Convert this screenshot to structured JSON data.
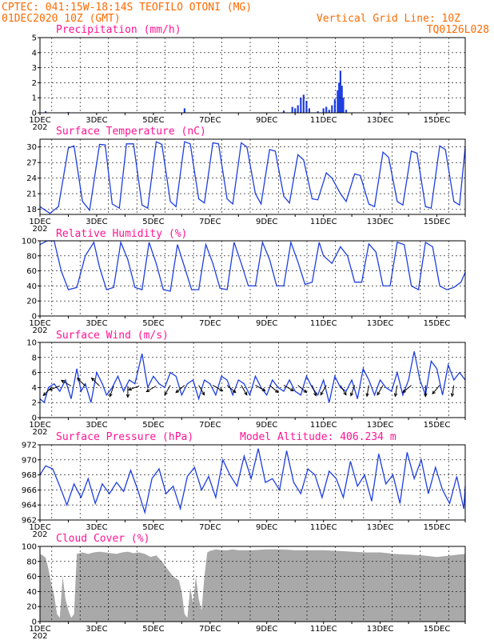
{
  "header": {
    "line1": "CPTEC:   041:15W-18:14S  TEOFILO OTONI (MG)",
    "line2": "01DEC2020 10Z (GMT)",
    "right1": "Vertical Grid Line: 10Z",
    "right2": "TQ0126L028"
  },
  "colors": {
    "header": "#ff6a00",
    "panel_title": "#ff1493",
    "line": "#1f3fe0",
    "bars": "#1f3fe0",
    "cloud": "#a9a9a9",
    "arrows": "#000000"
  },
  "x_axis": {
    "start_day": 1,
    "end_day": 16,
    "tick_labels": [
      "1DEC",
      "3DEC",
      "5DEC",
      "7DEC",
      "9DEC",
      "11DEC",
      "13DEC",
      "15DEC"
    ],
    "year_stub": "202"
  },
  "chart_data": [
    {
      "type": "bar",
      "title": "Precipitation (mm/h)",
      "ylim": [
        0,
        5
      ],
      "yticks": [
        0,
        1,
        2,
        3,
        4,
        5
      ],
      "x_unit": "day of December 2020",
      "bars": [
        [
          1.2,
          0.1
        ],
        [
          2.0,
          0.05
        ],
        [
          6.1,
          0.3
        ],
        [
          9.6,
          0.15
        ],
        [
          9.9,
          0.4
        ],
        [
          10.0,
          0.3
        ],
        [
          10.1,
          0.5
        ],
        [
          10.2,
          1.0
        ],
        [
          10.3,
          1.2
        ],
        [
          10.4,
          0.8
        ],
        [
          10.5,
          0.3
        ],
        [
          10.8,
          0.1
        ],
        [
          11.0,
          0.3
        ],
        [
          11.1,
          0.4
        ],
        [
          11.2,
          0.2
        ],
        [
          11.3,
          0.5
        ],
        [
          11.4,
          0.9
        ],
        [
          11.5,
          1.5
        ],
        [
          11.55,
          2.0
        ],
        [
          11.6,
          2.8
        ],
        [
          11.65,
          1.8
        ],
        [
          11.7,
          1.0
        ],
        [
          11.8,
          0.2
        ],
        [
          13.0,
          0.05
        ]
      ]
    },
    {
      "type": "line",
      "title": "Surface Temperature (nC)",
      "ylim": [
        17,
        31.5
      ],
      "yticks": [
        18,
        21,
        24,
        27,
        30
      ],
      "x": [
        1.0,
        1.35,
        1.65,
        2.0,
        2.2,
        2.5,
        2.75,
        3.1,
        3.3,
        3.55,
        3.8,
        4.05,
        4.3,
        4.6,
        4.8,
        5.1,
        5.3,
        5.6,
        5.8,
        6.1,
        6.3,
        6.6,
        6.8,
        7.1,
        7.3,
        7.6,
        7.8,
        8.1,
        8.3,
        8.6,
        8.8,
        9.1,
        9.3,
        9.6,
        9.8,
        10.1,
        10.3,
        10.6,
        10.8,
        11.1,
        11.3,
        11.6,
        11.8,
        12.1,
        12.3,
        12.6,
        12.8,
        13.1,
        13.3,
        13.6,
        13.8,
        14.1,
        14.3,
        14.6,
        14.8,
        15.1,
        15.3,
        15.6,
        15.8,
        16.0
      ],
      "y": [
        18.5,
        17.2,
        18.5,
        29.8,
        30.2,
        19.5,
        17.8,
        30.5,
        30.4,
        19.0,
        18.2,
        30.6,
        30.6,
        18.8,
        18.2,
        31.0,
        30.5,
        19.5,
        18.5,
        31.0,
        30.6,
        20.0,
        19.2,
        30.8,
        30.6,
        20.0,
        19.0,
        30.8,
        30.0,
        21.0,
        19.0,
        29.5,
        29.2,
        20.5,
        19.2,
        28.5,
        27.5,
        20.0,
        19.8,
        25.0,
        24.0,
        21.0,
        19.5,
        24.8,
        24.5,
        19.0,
        18.5,
        29.0,
        28.0,
        19.5,
        18.8,
        29.2,
        28.8,
        18.5,
        18.2,
        30.2,
        29.5,
        19.5,
        18.8,
        30.0
      ]
    },
    {
      "type": "line",
      "title": "Relative Humidity (%)",
      "ylim": [
        0,
        100
      ],
      "yticks": [
        0,
        20,
        40,
        60,
        80,
        100
      ],
      "x": [
        1.0,
        1.25,
        1.5,
        1.75,
        2.0,
        2.3,
        2.6,
        2.9,
        3.1,
        3.35,
        3.6,
        3.85,
        4.1,
        4.35,
        4.6,
        4.85,
        5.1,
        5.35,
        5.6,
        5.85,
        6.1,
        6.35,
        6.6,
        6.85,
        7.1,
        7.35,
        7.6,
        7.85,
        8.1,
        8.35,
        8.6,
        8.85,
        9.1,
        9.35,
        9.6,
        9.85,
        10.1,
        10.35,
        10.6,
        10.85,
        11.0,
        11.3,
        11.6,
        11.85,
        12.1,
        12.35,
        12.6,
        12.85,
        13.1,
        13.35,
        13.6,
        13.85,
        14.1,
        14.35,
        14.6,
        14.85,
        15.1,
        15.35,
        15.6,
        15.85,
        16.0
      ],
      "y": [
        95,
        100,
        100,
        60,
        35,
        38,
        80,
        98,
        65,
        35,
        38,
        98,
        75,
        38,
        35,
        98,
        70,
        35,
        33,
        95,
        65,
        35,
        35,
        95,
        70,
        37,
        35,
        98,
        70,
        40,
        40,
        98,
        75,
        40,
        40,
        98,
        72,
        42,
        45,
        98,
        80,
        70,
        92,
        80,
        45,
        45,
        96,
        85,
        40,
        40,
        98,
        95,
        40,
        35,
        98,
        92,
        40,
        35,
        38,
        45,
        58
      ]
    },
    {
      "type": "line",
      "title": "Surface Wind (m/s)",
      "ylim": [
        0,
        10
      ],
      "yticks": [
        0,
        2,
        4,
        6,
        8,
        10
      ],
      "x": [
        1.0,
        1.15,
        1.3,
        1.5,
        1.7,
        1.9,
        2.1,
        2.3,
        2.45,
        2.6,
        2.8,
        3.0,
        3.2,
        3.35,
        3.55,
        3.75,
        3.95,
        4.15,
        4.35,
        4.6,
        4.8,
        5.0,
        5.2,
        5.4,
        5.6,
        5.8,
        6.0,
        6.2,
        6.4,
        6.6,
        6.8,
        7.0,
        7.2,
        7.4,
        7.6,
        7.8,
        8.0,
        8.2,
        8.4,
        8.6,
        8.8,
        9.0,
        9.2,
        9.4,
        9.6,
        9.8,
        10.0,
        10.2,
        10.4,
        10.6,
        10.8,
        11.0,
        11.2,
        11.4,
        11.6,
        11.8,
        12.0,
        12.2,
        12.4,
        12.6,
        12.8,
        13.0,
        13.2,
        13.4,
        13.6,
        13.8,
        14.0,
        14.2,
        14.4,
        14.6,
        14.8,
        15.0,
        15.2,
        15.4,
        15.6,
        15.8,
        16.0
      ],
      "y": [
        2.5,
        2.0,
        4.0,
        4.5,
        3.5,
        5.0,
        2.5,
        6.5,
        3.5,
        4.5,
        2.0,
        6.0,
        4.5,
        3.0,
        4.0,
        5.5,
        3.5,
        5.0,
        4.5,
        8.5,
        4.0,
        5.5,
        4.5,
        4.0,
        6.0,
        5.5,
        3.0,
        4.5,
        5.0,
        2.5,
        5.0,
        4.5,
        3.0,
        5.5,
        5.0,
        3.0,
        5.0,
        4.5,
        3.0,
        5.5,
        4.0,
        3.0,
        5.0,
        4.0,
        3.5,
        5.0,
        3.5,
        3.0,
        5.5,
        4.0,
        3.0,
        5.0,
        2.0,
        5.5,
        4.0,
        3.5,
        5.0,
        2.5,
        6.5,
        5.0,
        3.0,
        5.0,
        4.0,
        3.5,
        6.0,
        3.0,
        5.0,
        8.8,
        5.0,
        3.0,
        7.5,
        6.5,
        3.0,
        7.0,
        5.0,
        6.0,
        5.0
      ],
      "wind_vectors": [
        [
          1.4,
          4.0,
          225
        ],
        [
          1.7,
          4.2,
          200
        ],
        [
          2.1,
          4.2,
          150
        ],
        [
          2.6,
          4.2,
          135
        ],
        [
          3.1,
          4.2,
          135
        ],
        [
          3.6,
          4.2,
          250
        ],
        [
          4.1,
          4.2,
          270
        ],
        [
          4.5,
          4.2,
          200
        ],
        [
          5.1,
          4.2,
          210
        ],
        [
          5.6,
          4.3,
          240
        ],
        [
          6.1,
          4.3,
          220
        ],
        [
          6.6,
          4.3,
          300
        ],
        [
          7.1,
          4.3,
          330
        ],
        [
          7.6,
          4.3,
          320
        ],
        [
          8.1,
          4.3,
          300
        ],
        [
          8.6,
          4.3,
          330
        ],
        [
          9.1,
          4.3,
          320
        ],
        [
          9.6,
          4.3,
          330
        ],
        [
          10.1,
          4.3,
          320
        ],
        [
          10.6,
          4.3,
          290
        ],
        [
          11.1,
          4.3,
          240
        ],
        [
          11.6,
          4.3,
          300
        ],
        [
          12.1,
          4.3,
          250
        ],
        [
          12.6,
          4.3,
          260
        ],
        [
          13.1,
          4.3,
          240
        ],
        [
          13.6,
          4.3,
          260
        ],
        [
          14.1,
          4.3,
          220
        ],
        [
          14.6,
          4.3,
          270
        ],
        [
          15.1,
          4.3,
          230
        ],
        [
          15.6,
          4.3,
          260
        ]
      ]
    },
    {
      "type": "line",
      "title": "Surface Pressure (hPa)",
      "annotation": "Model Altitude: 406.234 m",
      "ylim": [
        962,
        972
      ],
      "yticks": [
        962,
        964,
        966,
        968,
        970,
        972
      ],
      "x": [
        1.0,
        1.2,
        1.45,
        1.7,
        1.95,
        2.2,
        2.45,
        2.7,
        2.95,
        3.2,
        3.45,
        3.7,
        3.95,
        4.2,
        4.45,
        4.7,
        4.95,
        5.2,
        5.45,
        5.7,
        5.95,
        6.2,
        6.45,
        6.7,
        6.95,
        7.2,
        7.45,
        7.7,
        7.95,
        8.2,
        8.45,
        8.7,
        8.95,
        9.2,
        9.45,
        9.7,
        9.95,
        10.2,
        10.45,
        10.7,
        10.95,
        11.2,
        11.45,
        11.7,
        11.95,
        12.2,
        12.45,
        12.7,
        12.95,
        13.2,
        13.45,
        13.7,
        13.95,
        14.2,
        14.45,
        14.7,
        14.95,
        15.2,
        15.45,
        15.7,
        15.95,
        16.0
      ],
      "y": [
        968.0,
        969.2,
        968.8,
        966.5,
        964.0,
        966.8,
        965.0,
        967.5,
        964.2,
        966.8,
        965.5,
        967.0,
        965.8,
        968.6,
        966.0,
        963.0,
        967.5,
        968.8,
        965.5,
        966.5,
        963.5,
        967.8,
        969.0,
        966.0,
        967.8,
        965.0,
        970.0,
        968.0,
        966.5,
        970.5,
        967.5,
        971.5,
        967.0,
        967.5,
        966.0,
        971.2,
        967.0,
        965.5,
        968.8,
        968.0,
        965.0,
        968.5,
        967.5,
        965.0,
        969.8,
        966.5,
        968.0,
        964.5,
        970.8,
        966.8,
        968.0,
        964.2,
        971.0,
        967.5,
        970.0,
        965.5,
        969.0,
        966.0,
        964.2,
        967.8,
        963.5,
        966.5
      ]
    },
    {
      "type": "area",
      "title": "Cloud Cover (%)",
      "ylim": [
        0,
        100
      ],
      "yticks": [
        0,
        20,
        40,
        60,
        80,
        100
      ],
      "x": [
        1.0,
        1.1,
        1.2,
        1.3,
        1.4,
        1.5,
        1.6,
        1.7,
        1.8,
        1.9,
        2.0,
        2.1,
        2.2,
        2.3,
        2.5,
        2.7,
        2.9,
        3.1,
        3.3,
        3.5,
        3.7,
        3.9,
        4.1,
        4.3,
        4.5,
        4.7,
        4.9,
        5.1,
        5.3,
        5.5,
        5.7,
        5.9,
        6.0,
        6.1,
        6.2,
        6.3,
        6.4,
        6.5,
        6.6,
        6.7,
        6.8,
        6.9,
        7.0,
        7.2,
        7.4,
        7.6,
        7.8,
        8.0,
        8.5,
        9.0,
        9.5,
        10.0,
        10.5,
        11.0,
        11.5,
        12.0,
        12.5,
        13.0,
        13.5,
        14.0,
        14.5,
        15.0,
        15.5,
        16.0
      ],
      "y": [
        90,
        88,
        85,
        70,
        50,
        35,
        10,
        5,
        60,
        30,
        15,
        5,
        10,
        90,
        92,
        90,
        92,
        93,
        92,
        91,
        90,
        92,
        93,
        91,
        92,
        90,
        86,
        88,
        80,
        70,
        60,
        55,
        40,
        10,
        5,
        45,
        25,
        60,
        30,
        15,
        60,
        92,
        94,
        96,
        95,
        95,
        96,
        95,
        95,
        96,
        96,
        95,
        95,
        95,
        94,
        93,
        92,
        92,
        90,
        89,
        88,
        86,
        88,
        90
      ]
    }
  ]
}
